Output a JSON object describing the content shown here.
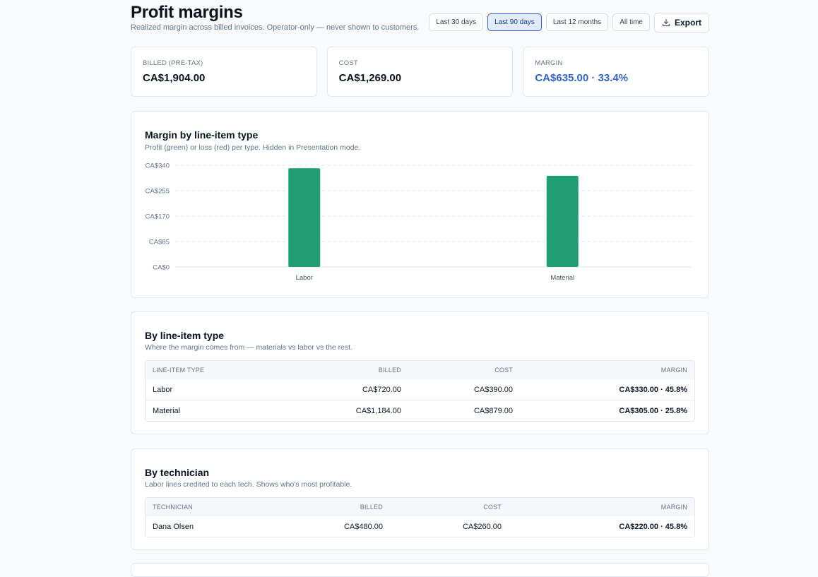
{
  "header": {
    "title": "Profit margins",
    "subtitle": "Realized margin across billed invoices. Operator-only — never shown to customers.",
    "ranges": [
      "Last 30 days",
      "Last 90 days",
      "Last 12 months",
      "All time"
    ],
    "active_range": "Last 90 days",
    "export_label": "Export"
  },
  "summary": {
    "billed_label": "BILLED (PRE-TAX)",
    "billed_value": "CA$1,904.00",
    "cost_label": "COST",
    "cost_value": "CA$1,269.00",
    "margin_label": "MARGIN",
    "margin_value": "CA$635.00 · 33.4%"
  },
  "chart_panel": {
    "title": "Margin by line-item type",
    "description": "Profit (green) or loss (red) per type. Hidden in Presentation mode."
  },
  "chart_data": {
    "type": "bar",
    "categories": [
      "Labor",
      "Material"
    ],
    "values": [
      330,
      305
    ],
    "ylim": [
      0,
      340
    ],
    "yticks": [
      0,
      85,
      170,
      255,
      340
    ],
    "ytick_labels": [
      "CA$0",
      "CA$85",
      "CA$170",
      "CA$255",
      "CA$340"
    ],
    "grid": true,
    "colors": {
      "profit": "#1f9e73",
      "loss": "#dc2626"
    }
  },
  "by_type": {
    "title": "By line-item type",
    "description": "Where the margin comes from — materials vs labor vs the rest.",
    "columns": [
      "LINE-ITEM TYPE",
      "BILLED",
      "COST",
      "MARGIN"
    ],
    "rows": [
      [
        "Labor",
        "CA$720.00",
        "CA$390.00",
        "CA$330.00 · 45.8%"
      ],
      [
        "Material",
        "CA$1,184.00",
        "CA$879.00",
        "CA$305.00 · 25.8%"
      ]
    ]
  },
  "by_technician": {
    "title": "By technician",
    "description": "Labor lines credited to each tech. Shows who's most profitable.",
    "columns": [
      "TECHNICIAN",
      "BILLED",
      "COST",
      "MARGIN"
    ],
    "rows": [
      [
        "Dana Olsen",
        "CA$480.00",
        "CA$260.00",
        "CA$220.00 · 45.8%"
      ]
    ]
  },
  "colors": {
    "accent": "#2f63d6",
    "bar": "#1f9e73",
    "active_tab_bg": "#e3ebff"
  }
}
